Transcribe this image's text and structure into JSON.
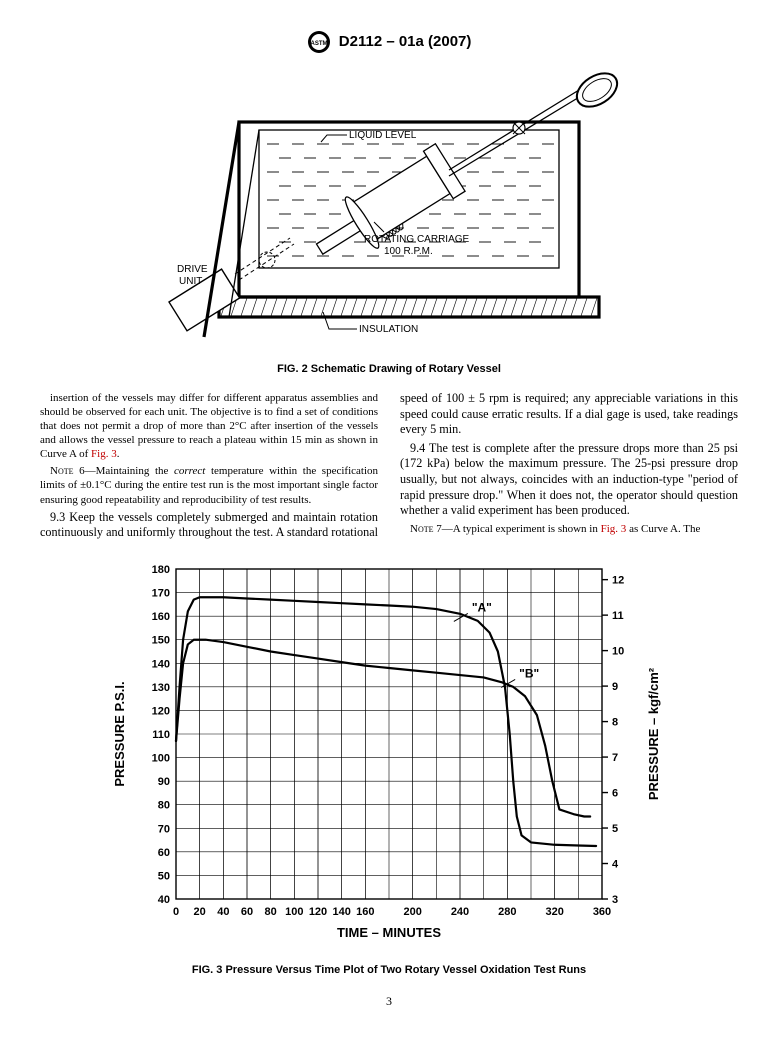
{
  "header": {
    "designation": "D2112 – 01a (2007)"
  },
  "fig2": {
    "caption": "FIG. 2  Schematic Drawing of Rotary Vessel",
    "labels": {
      "liquid_level": "LIQUID LEVEL",
      "rotating_carriage_1": "ROTATING CARRIAGE",
      "rotating_carriage_2": "100 R.P.M.",
      "drive_unit_1": "DRIVE",
      "drive_unit_2": "UNIT",
      "insulation": "INSULATION"
    },
    "style": {
      "stroke": "#000000",
      "line_thin": 1.3,
      "line_thick": 3.2,
      "font_family": "Arial, Helvetica, sans-serif",
      "font_size": 10,
      "background": "#ffffff"
    }
  },
  "body": {
    "para_cont": "insertion of the vessels may differ for different apparatus assemblies and should be observed for each unit. The objective is to find a set of conditions that does not permit a drop of more than 2°C after insertion of the vessels and allows the vessel pressure to reach a plateau within 15 min as shown in Curve A of ",
    "fig3_link": "Fig. 3",
    "note6_label": "Note 6—",
    "note6_a": "Maintaining the ",
    "note6_i": "correct",
    "note6_b": " temperature within the specification limits of ±0.1°C during the entire test run is the most important single factor ensuring good repeatability and reproducibility of test results.",
    "para93": "9.3 Keep the vessels completely submerged and maintain rotation continuously and uniformly throughout the test. A standard rotational speed of 100 ± 5 rpm is required; any appreciable variations in this speed could cause erratic results. If a dial gage is used, take readings every 5 min.",
    "para94": "9.4 The test is complete after the pressure drops more than 25 psi (172 kPa) below the maximum pressure. The 25-psi pressure drop usually, but not always, coincides with an induction-type \"period of rapid pressure drop.\" When it does not, the operator should question whether a valid experiment has been produced.",
    "note7_label": "Note 7—",
    "note7_a": "A typical experiment is shown in ",
    "note7_b": " as Curve A. The"
  },
  "fig3": {
    "caption": "FIG. 3  Pressure Versus Time Plot of Two Rotary Vessel Oxidation Test Runs",
    "type": "line",
    "xlabel": "TIME – MINUTES",
    "ylabel_left": "PRESSURE P.S.I.",
    "ylabel_right": "PRESSURE – kgf/cm²",
    "xlim": [
      0,
      360
    ],
    "ylim_left": [
      40,
      180
    ],
    "ylim_right": [
      3,
      12.3
    ],
    "xticks_major": [
      0,
      20,
      40,
      60,
      80,
      100,
      120,
      140,
      160,
      200,
      240,
      280,
      320,
      360
    ],
    "yticks_left": [
      40,
      50,
      60,
      70,
      80,
      90,
      100,
      110,
      120,
      130,
      140,
      150,
      160,
      170,
      180
    ],
    "yticks_right": [
      3,
      4,
      5,
      6,
      7,
      8,
      9,
      10,
      11,
      12
    ],
    "line_color": "#000000",
    "line_width": 2.2,
    "grid_color": "#000000",
    "grid_width": 0.6,
    "background": "#ffffff",
    "font_family": "Arial, Helvetica, sans-serif",
    "axis_fontsize": 12,
    "tick_fontsize": 11,
    "series": {
      "A": {
        "label": "\"A\"",
        "label_pos_x": 250,
        "label_pos_y": 162,
        "points": [
          [
            0,
            107
          ],
          [
            3,
            130
          ],
          [
            6,
            150
          ],
          [
            10,
            162
          ],
          [
            15,
            167
          ],
          [
            20,
            168
          ],
          [
            30,
            168
          ],
          [
            40,
            168
          ],
          [
            60,
            167.5
          ],
          [
            80,
            167
          ],
          [
            100,
            166.5
          ],
          [
            120,
            166
          ],
          [
            140,
            165.5
          ],
          [
            160,
            165
          ],
          [
            180,
            164.5
          ],
          [
            200,
            164
          ],
          [
            220,
            163
          ],
          [
            240,
            161
          ],
          [
            255,
            158
          ],
          [
            265,
            153
          ],
          [
            272,
            145
          ],
          [
            278,
            130
          ],
          [
            282,
            110
          ],
          [
            285,
            90
          ],
          [
            288,
            75
          ],
          [
            292,
            67
          ],
          [
            300,
            64
          ],
          [
            320,
            63
          ],
          [
            340,
            62.7
          ],
          [
            355,
            62.5
          ]
        ]
      },
      "B": {
        "label": "\"B\"",
        "label_pos_x": 290,
        "label_pos_y": 134,
        "points": [
          [
            0,
            107
          ],
          [
            3,
            125
          ],
          [
            6,
            140
          ],
          [
            10,
            148
          ],
          [
            15,
            150
          ],
          [
            25,
            150
          ],
          [
            40,
            149
          ],
          [
            60,
            147
          ],
          [
            80,
            145
          ],
          [
            100,
            143.5
          ],
          [
            120,
            142
          ],
          [
            140,
            140.5
          ],
          [
            160,
            139
          ],
          [
            180,
            138
          ],
          [
            200,
            137
          ],
          [
            220,
            136
          ],
          [
            240,
            135
          ],
          [
            260,
            134
          ],
          [
            275,
            132
          ],
          [
            285,
            130
          ],
          [
            295,
            126
          ],
          [
            305,
            118
          ],
          [
            312,
            105
          ],
          [
            318,
            90
          ],
          [
            324,
            78
          ],
          [
            336,
            76
          ],
          [
            345,
            75
          ],
          [
            350,
            75
          ]
        ]
      }
    }
  },
  "page": "3"
}
